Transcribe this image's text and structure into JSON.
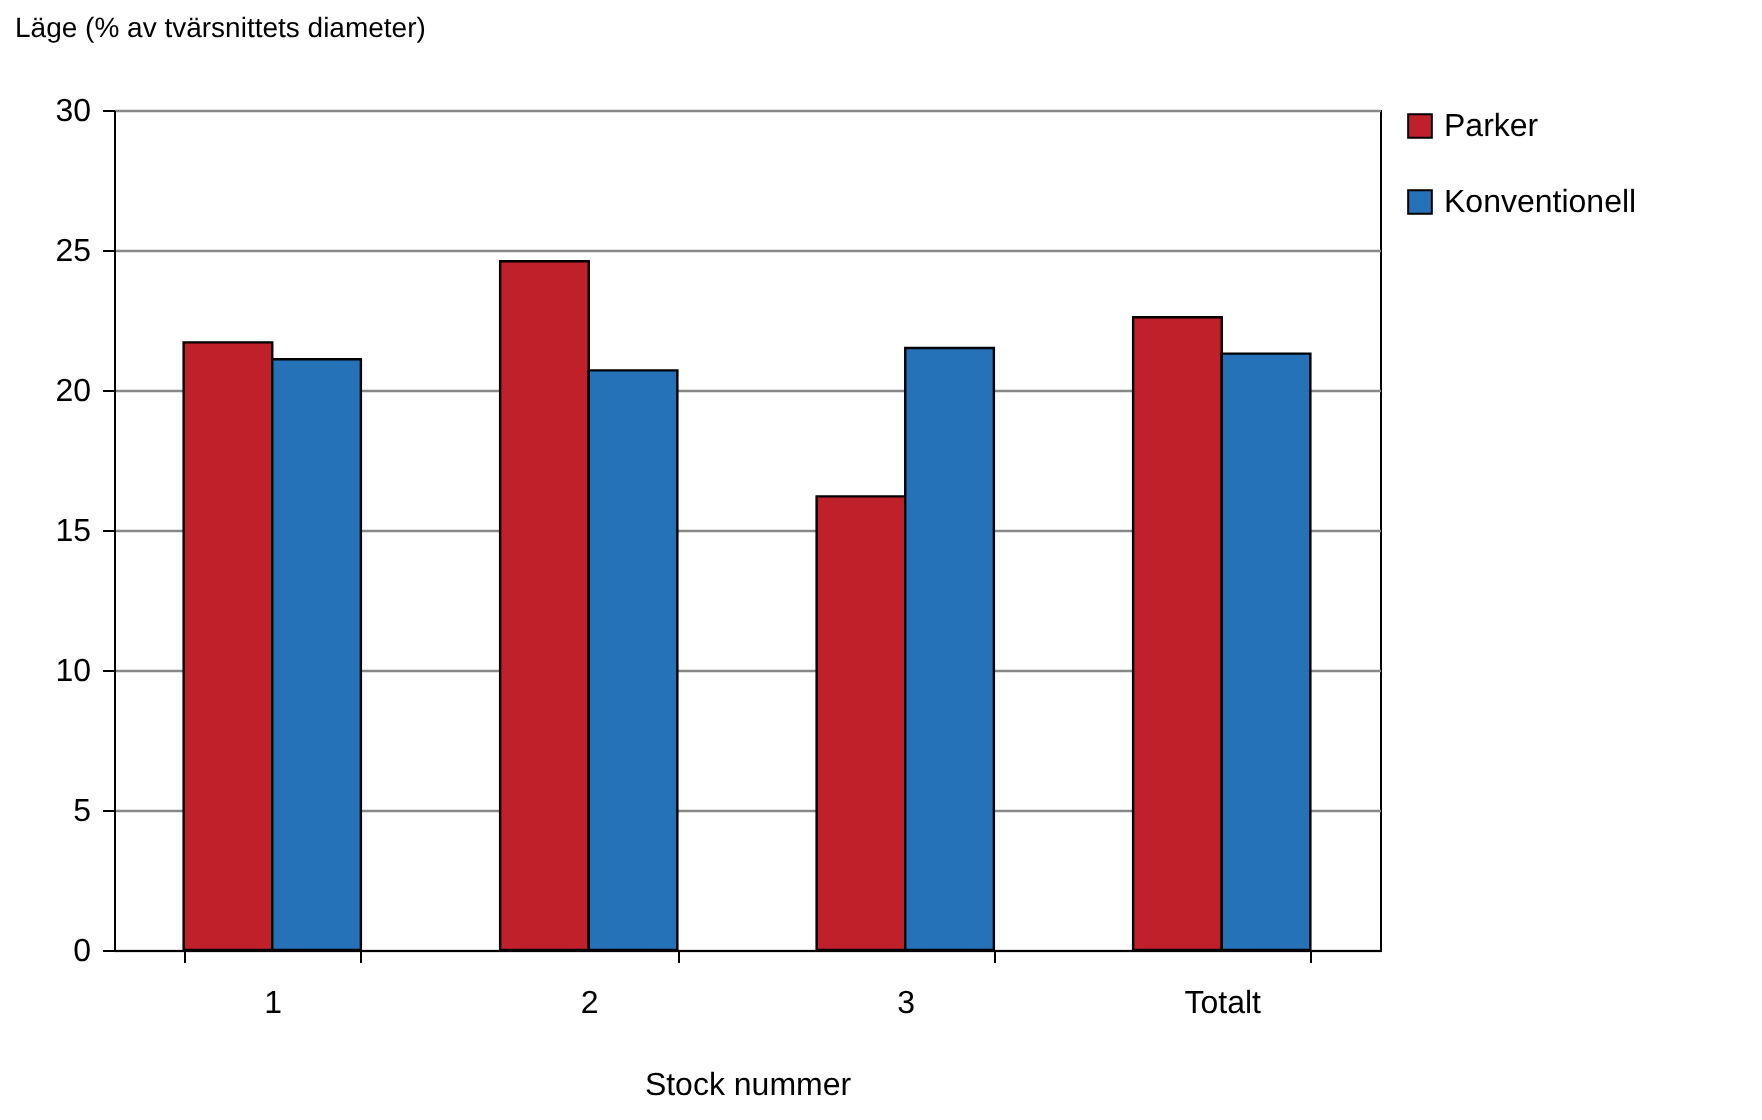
{
  "chart_data": {
    "type": "bar",
    "xlabel": "Stock nummer",
    "ylabel": "Läge (% av tvärsnittets diameter)",
    "categories": [
      "1",
      "2",
      "3",
      "Totalt"
    ],
    "series": [
      {
        "name": "Parker",
        "color": "#c0202a",
        "values": [
          21.7,
          24.6,
          16.2,
          22.6
        ]
      },
      {
        "name": "Konventionell",
        "color": "#2672b8",
        "values": [
          21.1,
          20.7,
          21.5,
          21.3
        ]
      }
    ],
    "ylim": [
      0,
      30
    ],
    "yticks": [
      0,
      5,
      10,
      15,
      20,
      25,
      30
    ],
    "grid": "y",
    "legend": "right"
  }
}
